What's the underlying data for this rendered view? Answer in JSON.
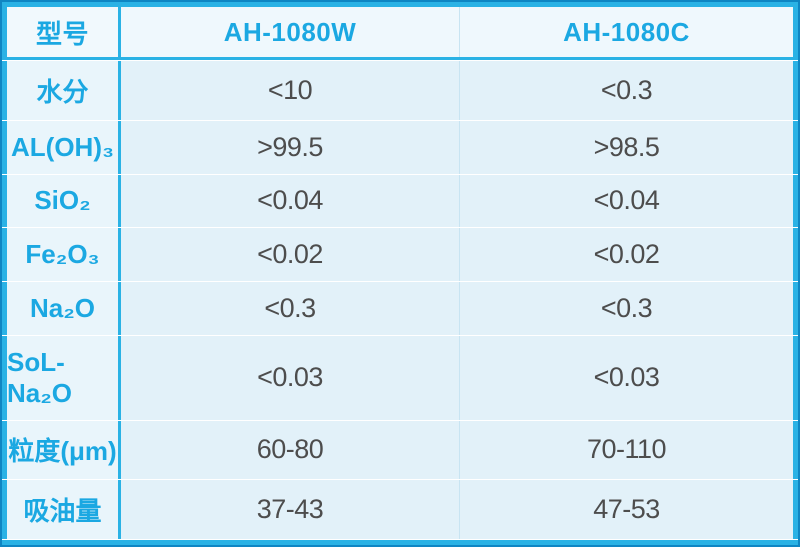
{
  "table": {
    "header": {
      "model_label": "型号",
      "col1": "AH-1080W",
      "col2": "AH-1080C"
    },
    "rows": [
      {
        "label": "水分",
        "v1": "<10",
        "v2": "<0.3"
      },
      {
        "label": "AL(OH)₃",
        "v1": ">99.5",
        "v2": ">98.5"
      },
      {
        "label": "SiO₂",
        "v1": "<0.04",
        "v2": "<0.04"
      },
      {
        "label": "Fe₂O₃",
        "v1": "<0.02",
        "v2": "<0.02"
      },
      {
        "label": "Na₂O",
        "v1": "<0.3",
        "v2": "<0.3"
      },
      {
        "label": "SoL-Na₂O",
        "v1": "<0.03",
        "v2": "<0.03"
      },
      {
        "label": "粒度(μm)",
        "v1": "60-80",
        "v2": "70-110"
      },
      {
        "label": "吸油量",
        "v1": "37-43",
        "v2": "47-53"
      }
    ],
    "colors": {
      "accent_text": "#1ba8e2",
      "border_cyan": "#2ab2e5",
      "outer_edge": "#0f86c3",
      "value_text": "#4d4d4d",
      "header_bg": "#eff8fd",
      "label_bg": "#e9f5fb",
      "cell_bg": "#e2f1f9",
      "light_divider": "#c8e4f2"
    }
  }
}
